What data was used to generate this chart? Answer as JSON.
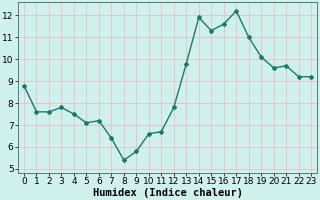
{
  "x": [
    0,
    1,
    2,
    3,
    4,
    5,
    6,
    7,
    8,
    9,
    10,
    11,
    12,
    13,
    14,
    15,
    16,
    17,
    18,
    19,
    20,
    21,
    22,
    23
  ],
  "y": [
    8.8,
    7.6,
    7.6,
    7.8,
    7.5,
    7.1,
    7.2,
    6.4,
    5.4,
    5.8,
    6.6,
    6.7,
    7.8,
    9.8,
    11.9,
    11.3,
    11.6,
    12.2,
    11.0,
    10.1,
    9.6,
    9.7,
    9.2,
    9.2
  ],
  "line_color": "#1a7a6e",
  "marker": "D",
  "marker_size": 2.0,
  "line_width": 1.0,
  "bg_color": "#cff0ec",
  "grid_color": "#e8b8b8",
  "xlabel": "Humidex (Indice chaleur)",
  "ylim": [
    4.8,
    12.6
  ],
  "xlim": [
    -0.5,
    23.5
  ],
  "yticks": [
    5,
    6,
    7,
    8,
    9,
    10,
    11,
    12
  ],
  "xticks": [
    0,
    1,
    2,
    3,
    4,
    5,
    6,
    7,
    8,
    9,
    10,
    11,
    12,
    13,
    14,
    15,
    16,
    17,
    18,
    19,
    20,
    21,
    22,
    23
  ],
  "xlabel_fontsize": 7.5,
  "tick_fontsize": 6.5
}
